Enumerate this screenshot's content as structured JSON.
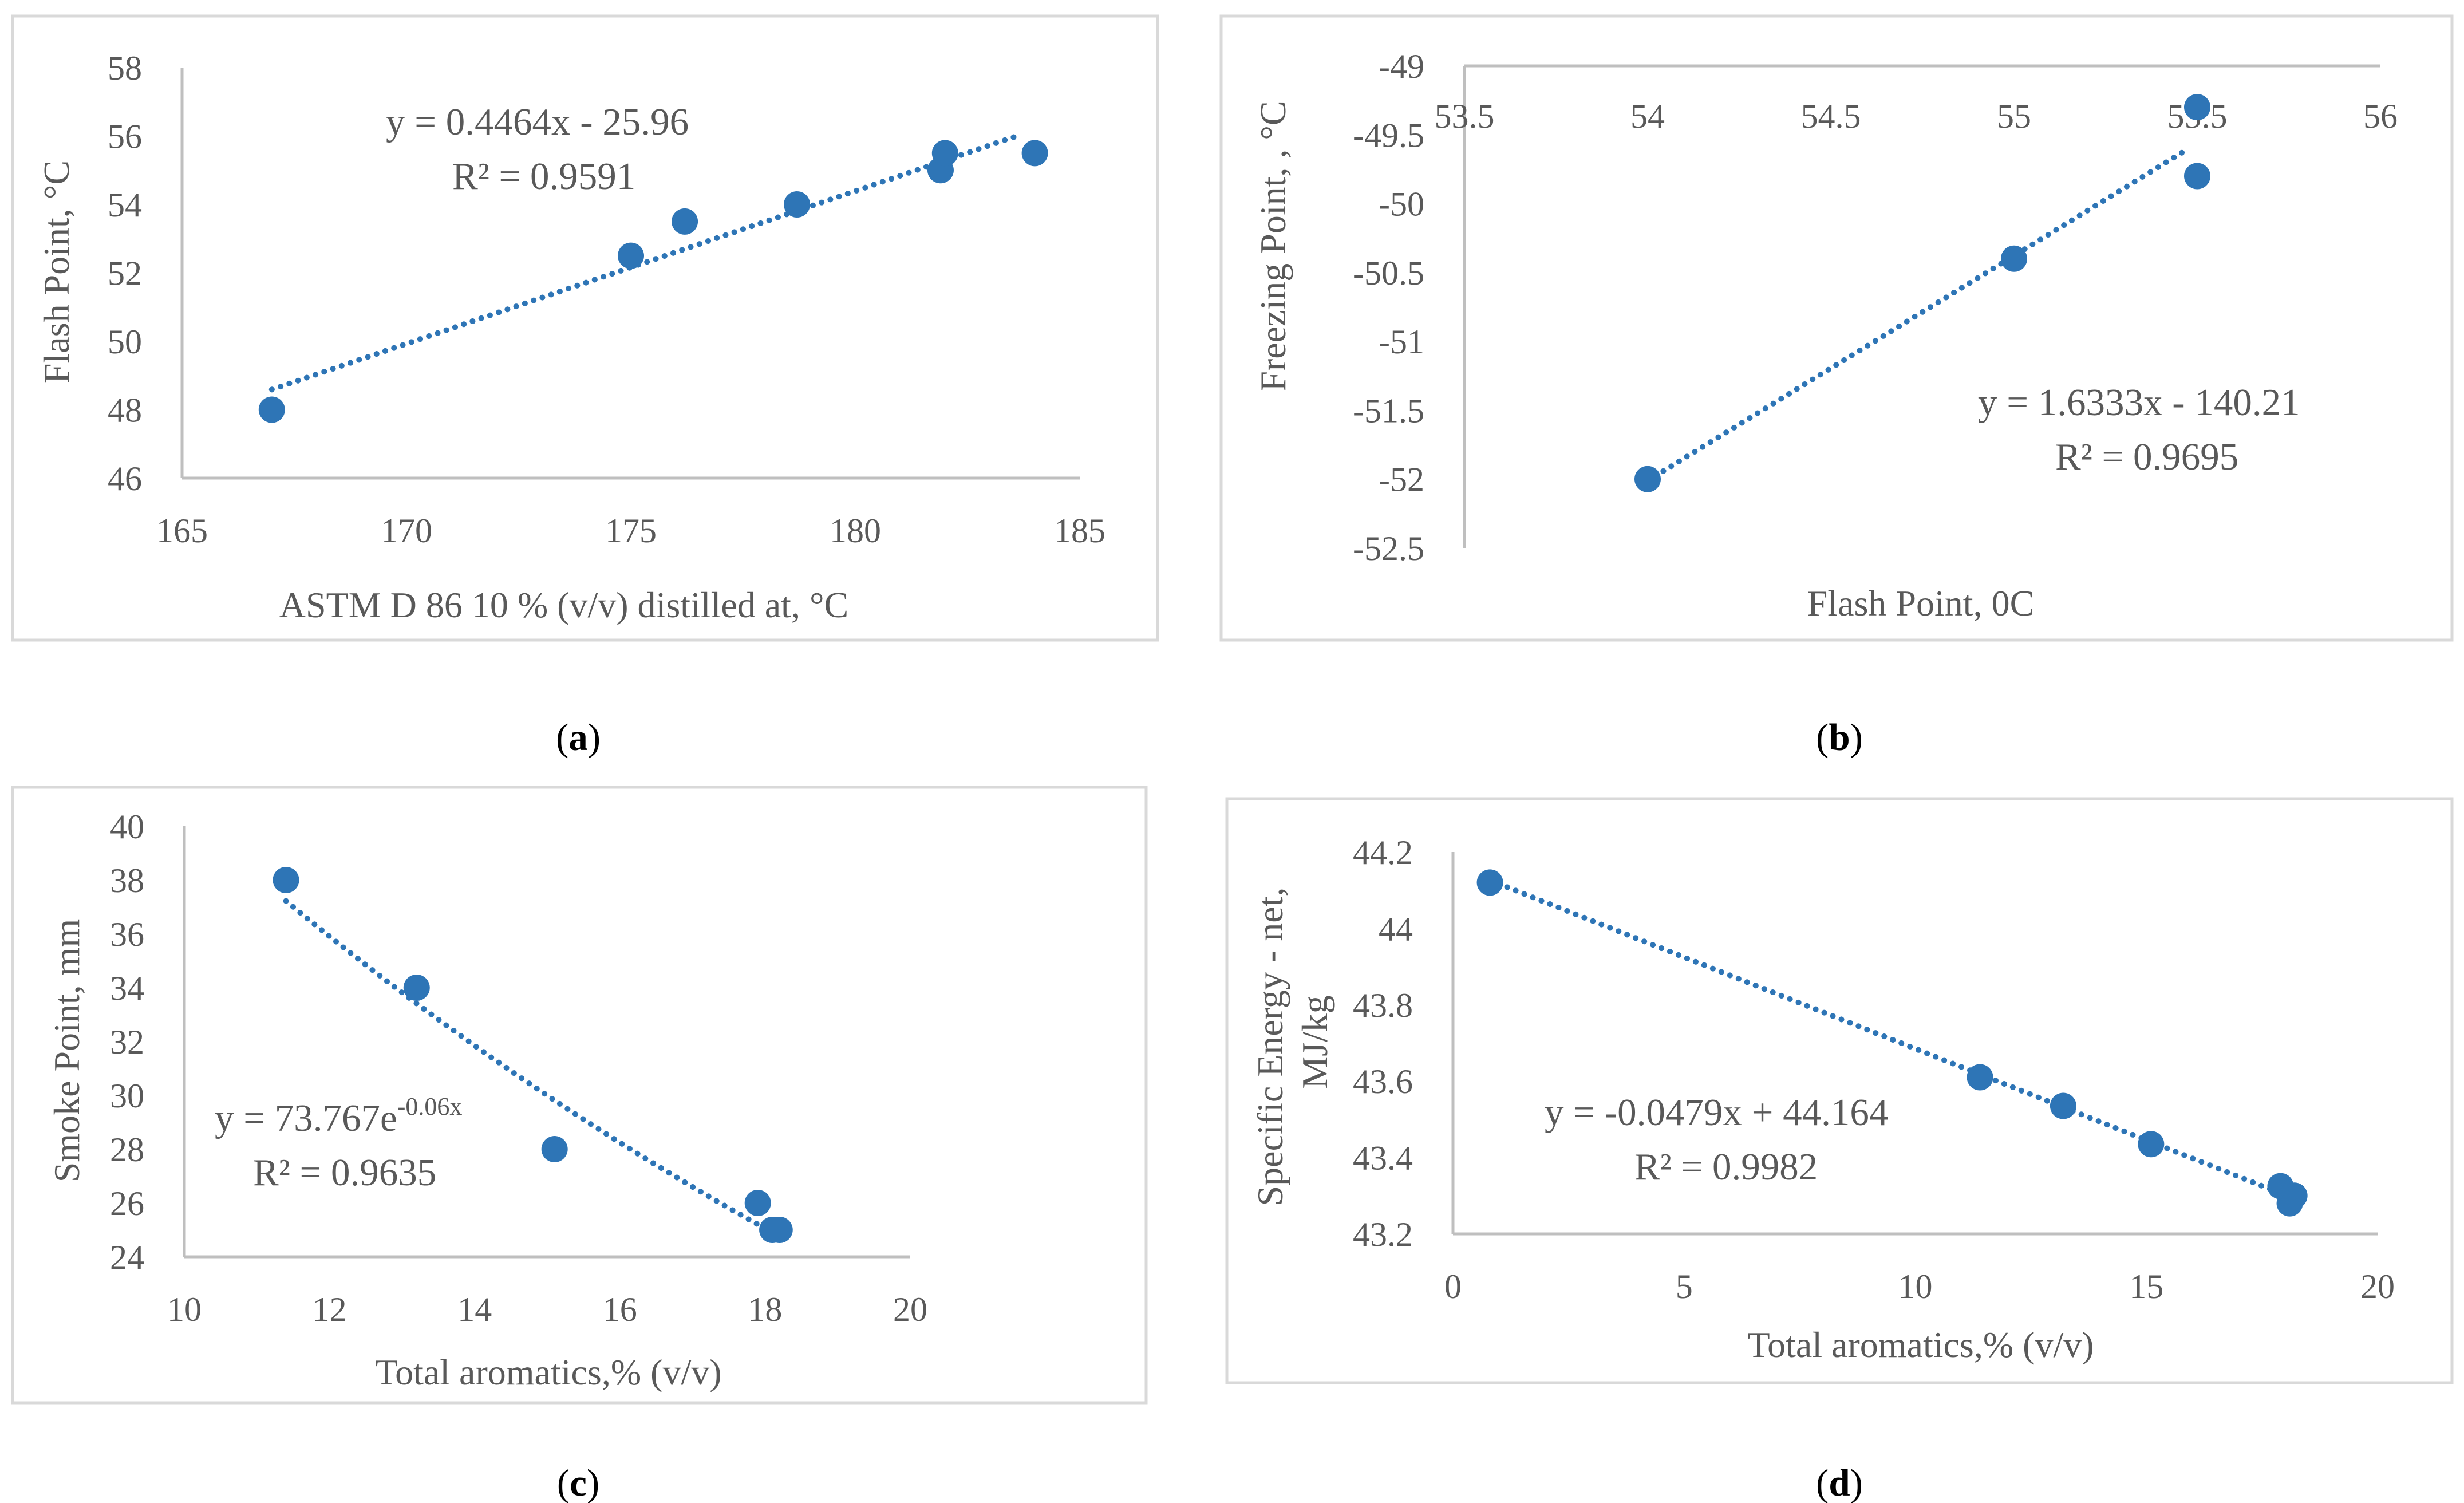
{
  "colors": {
    "marker": "#2E75B6",
    "trend": "#2E75B6",
    "axis": "#BFBFBF",
    "text": "#595959",
    "frame": "#D9D9D9"
  },
  "chart_data": [
    {
      "id": "a",
      "type": "scatter",
      "caption_letter": "a",
      "xlabel": "ASTM D 86 10 % (v/v) distilled at, °C",
      "ylabel": "Flash Point, °C",
      "xlim": [
        165,
        185
      ],
      "ylim": [
        46,
        58
      ],
      "xticks": [
        165,
        170,
        175,
        180,
        185
      ],
      "yticks": [
        46,
        48,
        50,
        52,
        54,
        56,
        58
      ],
      "x": [
        167,
        175,
        176.2,
        178.7,
        181.9,
        182,
        184
      ],
      "y": [
        48,
        52.5,
        53.5,
        54,
        55,
        55.5,
        55.5
      ],
      "trendline": {
        "kind": "linear",
        "a": 0.4464,
        "b": -25.96,
        "x_range": [
          167,
          183.7
        ]
      },
      "equation": "y = 0.4464x - 25.96",
      "r2": "R² = 0.9591"
    },
    {
      "id": "b",
      "type": "scatter",
      "caption_letter": "b",
      "xlabel": "Flash Point, 0C",
      "ylabel": "Freezing Point, , °C",
      "xlim": [
        53.5,
        56
      ],
      "ylim": [
        -52.5,
        -49
      ],
      "x_axis_at_top": true,
      "xticks": [
        53.5,
        54,
        54.5,
        55,
        55.5,
        56
      ],
      "yticks": [
        -49,
        -49.5,
        -50,
        -50.5,
        -51,
        -51.5,
        -52,
        -52.5
      ],
      "x": [
        54,
        55,
        55.5,
        55.5
      ],
      "y": [
        -52,
        -50.4,
        -49.8,
        -49.3
      ],
      "trendline": {
        "kind": "linear",
        "a": 1.6333,
        "b": -140.21,
        "x_range": [
          54,
          55.47
        ]
      },
      "equation": "y = 1.6333x - 140.21",
      "r2": "R² = 0.9695"
    },
    {
      "id": "c",
      "type": "scatter",
      "caption_letter": "c",
      "xlabel": "Total aromatics,% (v/v)",
      "ylabel": "Smoke Point, mm",
      "xlim": [
        10,
        20
      ],
      "ylim": [
        24,
        40
      ],
      "xticks": [
        10,
        12,
        14,
        16,
        18,
        20
      ],
      "yticks": [
        24,
        26,
        28,
        30,
        32,
        34,
        36,
        38,
        40
      ],
      "x": [
        11.4,
        13.2,
        15.1,
        17.9,
        18.1,
        18.2
      ],
      "y": [
        38,
        34,
        28,
        26,
        25,
        25
      ],
      "trendline": {
        "kind": "exponential",
        "a": 73.767,
        "b": -0.06,
        "x_range": [
          11.4,
          18.2
        ]
      },
      "equation_base": "y = 73.767e",
      "equation_exp": "-0.06x",
      "r2": "R² = 0.9635"
    },
    {
      "id": "d",
      "type": "scatter",
      "caption_letter": "d",
      "xlabel": "Total aromatics,% (v/v)",
      "ylabel_line1": "Specific Energy - net,",
      "ylabel_line2": "MJ/kg",
      "xlim": [
        0,
        20
      ],
      "ylim": [
        43.2,
        44.2
      ],
      "xticks": [
        0,
        5,
        10,
        15,
        20
      ],
      "yticks": [
        43.2,
        43.4,
        43.6,
        43.8,
        44,
        44.2
      ],
      "x": [
        0.8,
        11.4,
        13.2,
        15.1,
        17.9,
        18.1,
        18.2
      ],
      "y": [
        44.12,
        43.61,
        43.535,
        43.435,
        43.325,
        43.28,
        43.3
      ],
      "trendline": {
        "kind": "linear",
        "a": -0.0479,
        "b": 44.164,
        "x_range": [
          0.8,
          18.2
        ]
      },
      "equation": "y = -0.0479x + 44.164",
      "r2": "R² = 0.9982"
    }
  ]
}
